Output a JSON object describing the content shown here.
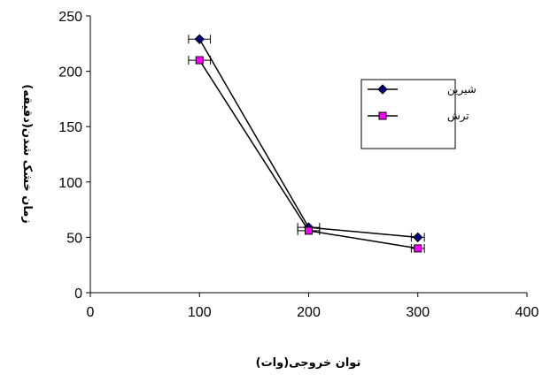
{
  "chart_data": {
    "type": "line",
    "title": "",
    "xlabel": "توان خروجی(وات)",
    "ylabel": "زمان خشک شدن(دقیقه)",
    "xlim": [
      0,
      400
    ],
    "ylim": [
      0,
      250
    ],
    "xticks": [
      0,
      100,
      200,
      300,
      400
    ],
    "yticks": [
      0,
      50,
      100,
      150,
      200,
      250
    ],
    "grid": false,
    "legend_position": "right",
    "x": [
      100,
      200,
      300
    ],
    "series": [
      {
        "name": "شیرین",
        "marker": "diamond",
        "color": "#000080",
        "values": [
          229,
          59,
          50
        ],
        "x_error": [
          10,
          10,
          6
        ]
      },
      {
        "name": "ترش",
        "marker": "square",
        "color": "#ff00ff",
        "values": [
          210,
          56,
          40
        ],
        "x_error": [
          10,
          10,
          6
        ]
      }
    ]
  }
}
